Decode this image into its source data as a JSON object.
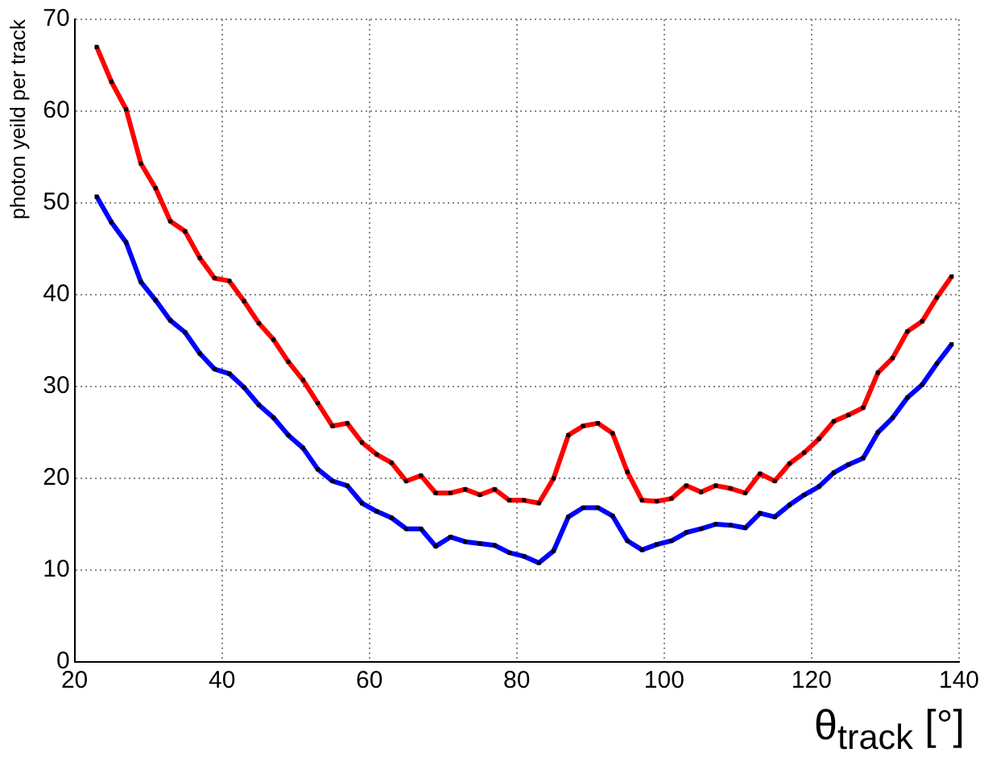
{
  "chart_data": {
    "type": "line",
    "xlabel": "θ$_{track}$ [°]",
    "ylabel": "photon yeild per track",
    "x": [
      23,
      25,
      27,
      29,
      31,
      33,
      35,
      37,
      39,
      41,
      43,
      45,
      47,
      49,
      51,
      53,
      55,
      57,
      59,
      61,
      63,
      65,
      67,
      69,
      71,
      73,
      75,
      77,
      79,
      81,
      83,
      85,
      87,
      89,
      91,
      93,
      95,
      97,
      99,
      101,
      103,
      105,
      107,
      109,
      111,
      113,
      115,
      117,
      119,
      121,
      123,
      125,
      127,
      129,
      131,
      133,
      135,
      137,
      139
    ],
    "series": [
      {
        "color": "#ff0000",
        "values": [
          67,
          63.2,
          60.2,
          54.3,
          51.6,
          48.0,
          46.9,
          44.0,
          41.8,
          41.5,
          39.3,
          36.9,
          35.1,
          32.7,
          30.7,
          28.2,
          25.7,
          26.0,
          23.9,
          22.6,
          21.7,
          19.7,
          20.3,
          18.4,
          18.4,
          18.8,
          18.2,
          18.8,
          17.6,
          17.6,
          17.3,
          20.0,
          24.7,
          25.7,
          26.0,
          24.9,
          20.7,
          17.6,
          17.5,
          17.8,
          19.2,
          18.5,
          19.2,
          18.9,
          18.4,
          20.5,
          19.7,
          21.6,
          22.8,
          24.3,
          26.2,
          26.9,
          27.7,
          31.5,
          33.1,
          36.0,
          37.1,
          39.7,
          42.0
        ]
      },
      {
        "color": "#0000ff",
        "values": [
          50.7,
          47.9,
          45.7,
          41.4,
          39.4,
          37.2,
          35.9,
          33.6,
          31.9,
          31.4,
          29.9,
          28.0,
          26.6,
          24.7,
          23.3,
          21.0,
          19.7,
          19.2,
          17.3,
          16.4,
          15.7,
          14.5,
          14.5,
          12.6,
          13.6,
          13.1,
          12.9,
          12.7,
          11.9,
          11.5,
          10.8,
          12.1,
          15.8,
          16.8,
          16.8,
          15.9,
          13.2,
          12.2,
          12.8,
          13.2,
          14.1,
          14.5,
          15.0,
          14.9,
          14.6,
          16.2,
          15.8,
          17.1,
          18.2,
          19.1,
          20.6,
          21.5,
          22.2,
          25.0,
          26.6,
          28.8,
          30.2,
          32.5,
          34.6
        ]
      }
    ],
    "xlim": [
      20,
      140
    ],
    "xticks": [
      20,
      40,
      60,
      80,
      100,
      120,
      140
    ],
    "ylim": [
      0,
      70
    ],
    "yticks": [
      0,
      10,
      20,
      30,
      40,
      50,
      60,
      70
    ],
    "grid": true,
    "legend": false,
    "marker": "square",
    "line_style": "solid"
  }
}
